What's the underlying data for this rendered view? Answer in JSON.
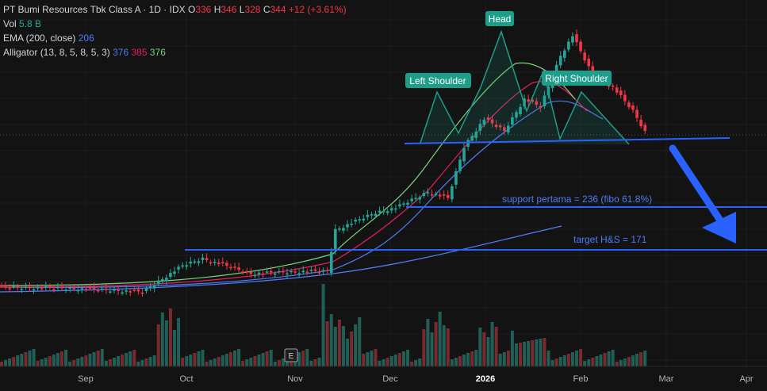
{
  "legend": {
    "symbol": "PT Bumi Resources Tbk Class A · 1D · IDX",
    "o_label": "O",
    "o_value": "336",
    "h_label": "H",
    "h_value": "346",
    "l_label": "L",
    "l_value": "328",
    "c_label": "C",
    "c_value": "344",
    "change": "+12 (+3.61%)",
    "vol_label": "Vol",
    "vol_value": "5.8 B",
    "ema_label": "EMA (200, close)",
    "ema_value": "206",
    "alligator_label": "Alligator (13, 8, 5, 8, 5, 3)",
    "alligator_jaw": "376",
    "alligator_teeth": "385",
    "alligator_lips": "376"
  },
  "x_axis": {
    "labels": [
      "Sep",
      "Oct",
      "Nov",
      "Dec",
      "2026",
      "Feb",
      "Mar",
      "Apr"
    ],
    "bold_label": "2026"
  },
  "annotations": {
    "left_shoulder": "Left Shoulder",
    "head": "Head",
    "right_shoulder": "Right Shoulder",
    "support_text": "support pertama = 236 (fibo 61.8%)",
    "target_text": "target H&S = 171",
    "e_marker": "E"
  },
  "colors": {
    "up": "#26a69a",
    "down": "#f23645",
    "ema": "#4f7cf7",
    "jaw": "#4f7cf7",
    "teeth": "#e91e63",
    "lips": "#7ad67a",
    "pattern": "#1e9e8a",
    "level": "#2962ff"
  },
  "chart_data": {
    "type": "candlestick",
    "series": [
      {
        "name": "Vol",
        "type": "bar"
      },
      {
        "name": "EMA (200, close)",
        "type": "line"
      },
      {
        "name": "Alligator (13, 8, 5, 8, 5, 3)",
        "type": "line"
      }
    ],
    "last_bar": {
      "open": 336,
      "high": 346,
      "low": 328,
      "close": 344,
      "change": 12,
      "change_pct": 3.61,
      "volume": "5.8 B"
    },
    "ema_200": 206,
    "alligator": {
      "jaw": 376,
      "teeth": 385,
      "lips": 376
    },
    "levels": [
      {
        "label": "support pertama = 236 (fibo 61.8%)",
        "value": 236
      },
      {
        "label": "target H&S = 171",
        "value": 171
      }
    ],
    "pattern": "head and shoulders"
  }
}
